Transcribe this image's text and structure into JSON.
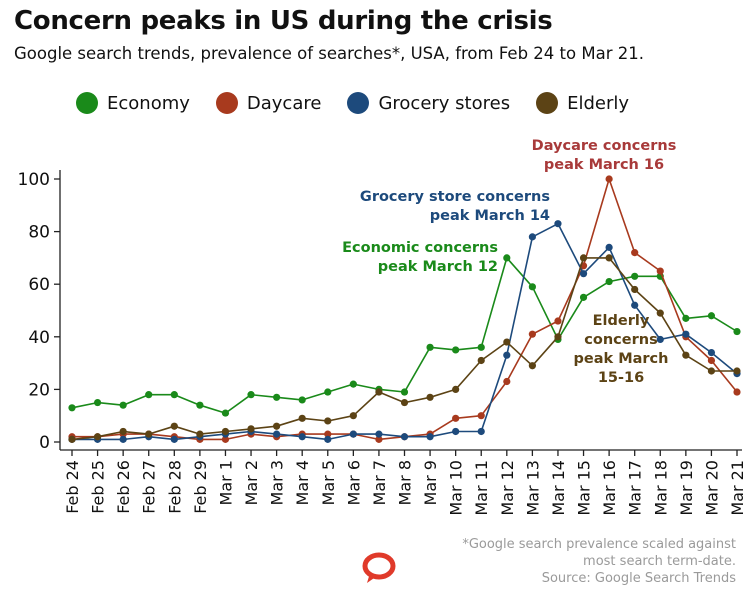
{
  "title": "Concern peaks in US during the crisis",
  "subtitle": "Google search trends, prevalence of searches*, USA, from Feb 24 to Mar 21.",
  "legend": [
    {
      "name": "Economy",
      "color": "#1a8a1a"
    },
    {
      "name": "Daycare",
      "color": "#a83a1e"
    },
    {
      "name": "Grocery stores",
      "color": "#1d4a7c"
    },
    {
      "name": "Elderly",
      "color": "#5c4315"
    }
  ],
  "footnote": {
    "line1": "*Google search prevalence scaled against",
    "line2": "most search term-date.",
    "source": "Source: Google Search Trends"
  },
  "logo_icon": "speech-bubble-logo-icon",
  "chart_data": {
    "type": "line",
    "title": "Concern peaks in US during the crisis",
    "subtitle": "Google search trends, prevalence of searches*, USA, from Feb 24 to Mar 21.",
    "xlabel": "",
    "ylabel": "",
    "ylim": [
      0,
      100
    ],
    "yticks": [
      0,
      20,
      40,
      60,
      80,
      100
    ],
    "grid": false,
    "legend_position": "top",
    "categories": [
      "Feb 24",
      "Feb 25",
      "Feb 26",
      "Feb 27",
      "Feb 28",
      "Feb 29",
      "Mar 1",
      "Mar 2",
      "Mar 3",
      "Mar 4",
      "Mar 5",
      "Mar 6",
      "Mar 7",
      "Mar 8",
      "Mar 9",
      "Mar 10",
      "Mar 11",
      "Mar 12",
      "Mar 13",
      "Mar 14",
      "Mar 15",
      "Mar 16",
      "Mar 17",
      "Mar 18",
      "Mar 19",
      "Mar 20",
      "Mar 21"
    ],
    "series": [
      {
        "name": "Economy",
        "color": "#1a8a1a",
        "values": [
          13,
          15,
          14,
          18,
          18,
          14,
          11,
          18,
          17,
          16,
          19,
          22,
          20,
          19,
          36,
          35,
          36,
          70,
          59,
          39,
          55,
          61,
          63,
          63,
          47,
          48,
          42
        ]
      },
      {
        "name": "Daycare",
        "color": "#a83a1e",
        "values": [
          2,
          2,
          3,
          3,
          2,
          1,
          1,
          3,
          2,
          3,
          3,
          3,
          1,
          2,
          3,
          9,
          10,
          23,
          41,
          46,
          67,
          100,
          72,
          65,
          40,
          31,
          19
        ]
      },
      {
        "name": "Grocery stores",
        "color": "#1d4a7c",
        "values": [
          1,
          1,
          1,
          2,
          1,
          2,
          3,
          4,
          3,
          2,
          1,
          3,
          3,
          2,
          2,
          4,
          4,
          33,
          78,
          83,
          64,
          74,
          52,
          39,
          41,
          34,
          26
        ]
      },
      {
        "name": "Elderly",
        "color": "#5c4315",
        "values": [
          1,
          2,
          4,
          3,
          6,
          3,
          4,
          5,
          6,
          9,
          8,
          10,
          19,
          15,
          17,
          20,
          31,
          38,
          29,
          40,
          70,
          70,
          58,
          49,
          33,
          27,
          27
        ]
      }
    ],
    "annotations": [
      {
        "text": [
          "Daycare concerns",
          "peak March  16"
        ],
        "color": "#a83a3a",
        "anchor": "middle"
      },
      {
        "text": [
          "Grocery store concerns",
          "peak March 14"
        ],
        "color": "#1d4a7c",
        "anchor": "end"
      },
      {
        "text": [
          "Economic concerns",
          "peak March 12"
        ],
        "color": "#1a8a1a",
        "anchor": "end"
      },
      {
        "text": [
          "Elderly",
          "concerns",
          "peak March",
          "15-16"
        ],
        "color": "#5c4315",
        "anchor": "middle"
      }
    ]
  }
}
